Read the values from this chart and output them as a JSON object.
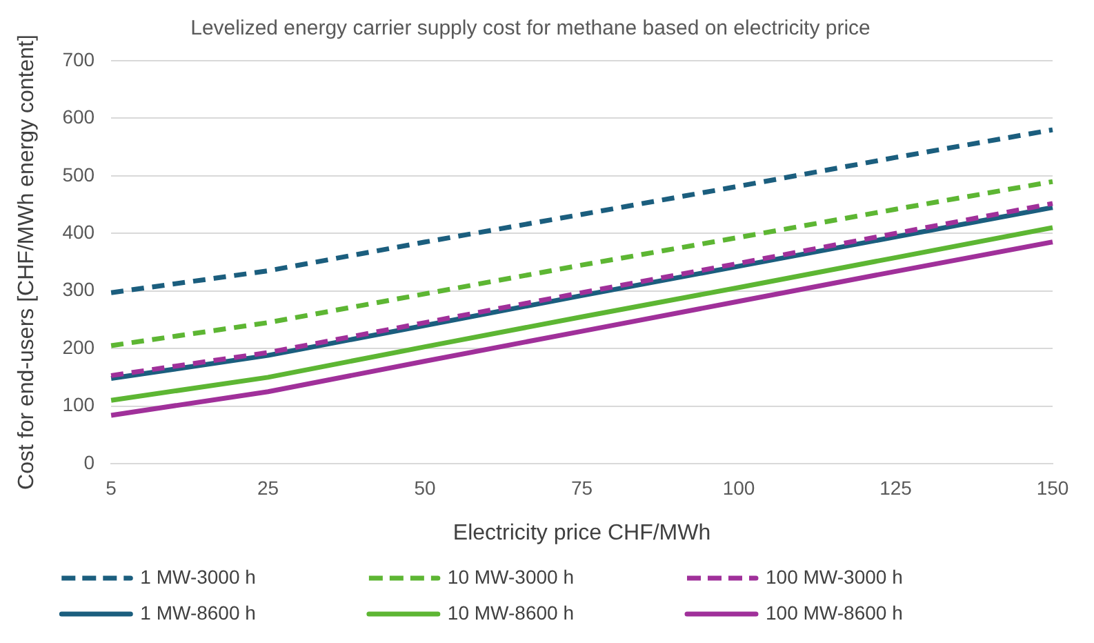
{
  "chart_data": {
    "type": "line",
    "title": "Levelized energy carrier supply cost for methane based on electricity price",
    "xlabel": "Electricity price CHF/MWh",
    "ylabel": "Cost for end-users [CHF/MWh energy content]",
    "categories": [
      "5",
      "25",
      "50",
      "75",
      "100",
      "125",
      "150"
    ],
    "ylim": [
      0,
      700
    ],
    "yticks": [
      0,
      100,
      200,
      300,
      400,
      500,
      600,
      700
    ],
    "grid": "y",
    "legend": "bottom",
    "marker": "none",
    "series": [
      {
        "name": "1 MW-3000 h",
        "color": "#1b5e7e",
        "line_style": "dashed",
        "values": [
          297,
          335,
          385,
          433,
          482,
          532,
          580
        ]
      },
      {
        "name": "10 MW-3000 h",
        "color": "#5db633",
        "line_style": "dashed",
        "values": [
          205,
          245,
          295,
          345,
          393,
          442,
          490
        ]
      },
      {
        "name": "100 MW-3000 h",
        "color": "#a0309a",
        "line_style": "dashed",
        "values": [
          153,
          193,
          245,
          297,
          348,
          400,
          452
        ]
      },
      {
        "name": "1 MW-8600 h",
        "color": "#1b5e7e",
        "line_style": "solid",
        "values": [
          148,
          188,
          240,
          292,
          343,
          394,
          445
        ]
      },
      {
        "name": "10 MW-8600 h",
        "color": "#5db633",
        "line_style": "solid",
        "values": [
          110,
          150,
          203,
          255,
          306,
          358,
          410
        ]
      },
      {
        "name": "100 MW-8600 h",
        "color": "#a0309a",
        "line_style": "solid",
        "values": [
          84,
          125,
          178,
          230,
          282,
          334,
          385
        ]
      }
    ]
  }
}
